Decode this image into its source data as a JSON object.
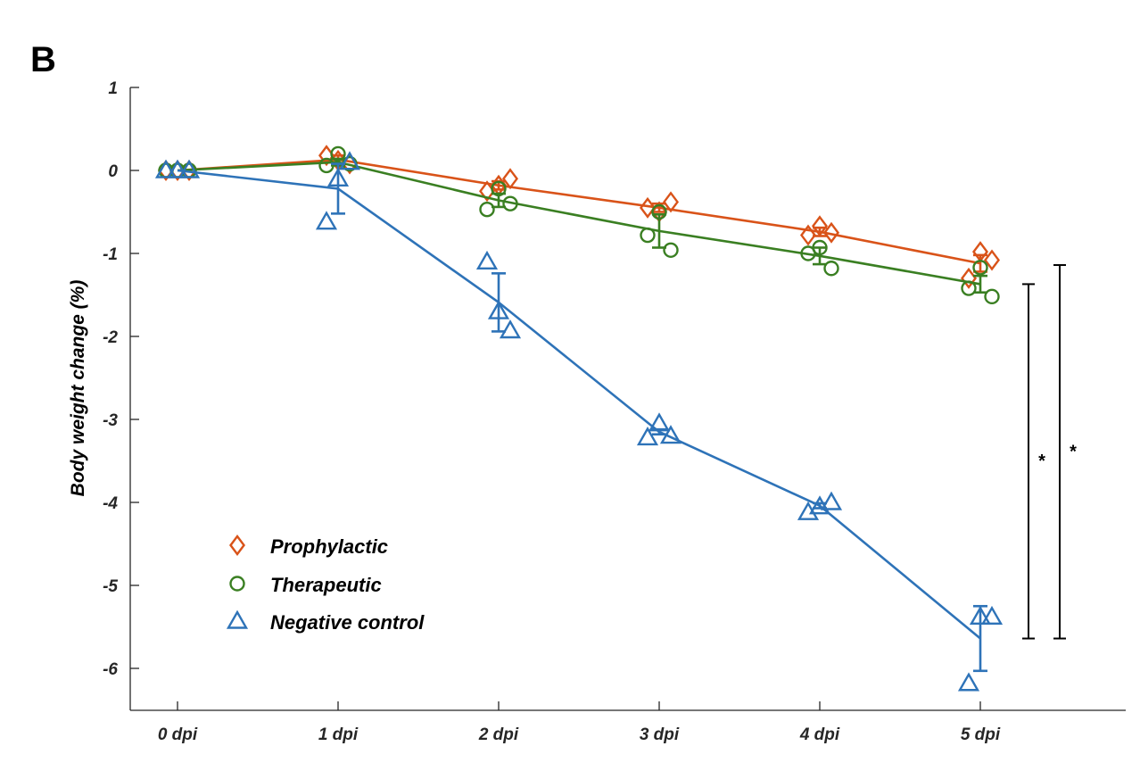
{
  "panel_letter": "B",
  "colors": {
    "Prophylactic": "#D95319",
    "Therapeutic": "#3A7F22",
    "Negative control": "#2E73B8",
    "axis": "#262626",
    "significance": "#000000"
  },
  "chart_data": {
    "type": "line",
    "title": "",
    "xlabel": "",
    "ylabel": "Body weight change (%)",
    "categories": [
      "0 dpi",
      "1 dpi",
      "2 dpi",
      "3 dpi",
      "4 dpi",
      "5 dpi"
    ],
    "ylim": [
      -6.5,
      1
    ],
    "yticks": [
      1,
      0,
      -1,
      -2,
      -3,
      -4,
      -5,
      -6
    ],
    "grid": false,
    "legend_position": "bottom-left",
    "series": [
      {
        "name": "Prophylactic",
        "marker": "diamond",
        "mean": [
          0,
          0.13,
          -0.18,
          -0.45,
          -0.74,
          -1.12
        ],
        "sem": [
          0,
          0.05,
          0.05,
          0.05,
          0.05,
          0.1
        ],
        "replicates": [
          [
            0,
            0,
            0
          ],
          [
            0.18,
            0.12,
            0.08
          ],
          [
            -0.25,
            -0.18,
            -0.1
          ],
          [
            -0.45,
            -0.5,
            -0.38
          ],
          [
            -0.78,
            -0.67,
            -0.75
          ],
          [
            -1.3,
            -0.98,
            -1.08
          ]
        ]
      },
      {
        "name": "Therapeutic",
        "marker": "circle",
        "mean": [
          0,
          0.1,
          -0.36,
          -0.73,
          -1.03,
          -1.37
        ],
        "sem": [
          0,
          0.04,
          0.08,
          0.2,
          0.1,
          0.1
        ],
        "replicates": [
          [
            0,
            0,
            0
          ],
          [
            0.06,
            0.2,
            0.08
          ],
          [
            -0.47,
            -0.22,
            -0.4
          ],
          [
            -0.78,
            -0.5,
            -0.96
          ],
          [
            -1.0,
            -0.93,
            -1.18
          ],
          [
            -1.42,
            -1.17,
            -1.52
          ]
        ]
      },
      {
        "name": "Negative control",
        "marker": "triangle",
        "mean": [
          0,
          -0.22,
          -1.59,
          -3.15,
          -4.04,
          -5.64
        ],
        "sem": [
          0,
          0.3,
          0.35,
          0.03,
          0.03,
          0.39
        ],
        "replicates": [
          [
            0,
            0,
            0
          ],
          [
            -0.62,
            -0.1,
            0.1
          ],
          [
            -1.1,
            -1.7,
            -1.93
          ],
          [
            -3.22,
            -3.05,
            -3.2
          ],
          [
            -4.12,
            -4.05,
            -4.0
          ],
          [
            -6.18,
            -5.38,
            -5.38
          ]
        ]
      }
    ],
    "significance": [
      {
        "label": "*",
        "from": -1.37,
        "to": -5.64
      },
      {
        "label": "*",
        "from": -1.14,
        "to": -5.64
      }
    ]
  }
}
